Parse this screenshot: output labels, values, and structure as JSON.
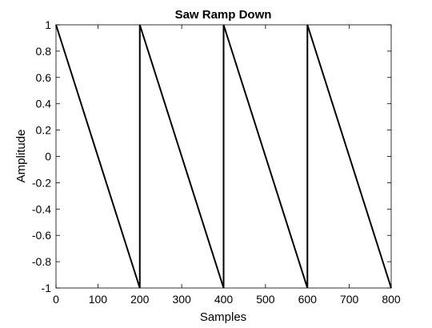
{
  "chart_data": {
    "type": "line",
    "title": "Saw Ramp Down",
    "xlabel": "Samples",
    "ylabel": "Amplitude",
    "xlim": [
      0,
      800
    ],
    "ylim": [
      -1,
      1
    ],
    "xticks": [
      0,
      100,
      200,
      300,
      400,
      500,
      600,
      700,
      800
    ],
    "xtick_labels": [
      "0",
      "100",
      "200",
      "300",
      "400",
      "500",
      "600",
      "700",
      "800"
    ],
    "yticks": [
      1,
      0.8,
      0.6,
      0.4,
      0.2,
      0,
      -0.2,
      -0.4,
      -0.6,
      -0.8,
      -1
    ],
    "ytick_labels": [
      "1",
      "0.8",
      "0.6",
      "0.4",
      "0.2",
      "0",
      "-0.2",
      "-0.4",
      "-0.6",
      "-0.8",
      "-1"
    ],
    "grid": false,
    "legend": false,
    "series": [
      {
        "color": "#000000",
        "x": [
          0,
          200,
          200,
          400,
          400,
          600,
          600,
          800
        ],
        "y": [
          1,
          -1,
          1,
          -1,
          1,
          -1,
          1,
          -1
        ]
      }
    ]
  }
}
